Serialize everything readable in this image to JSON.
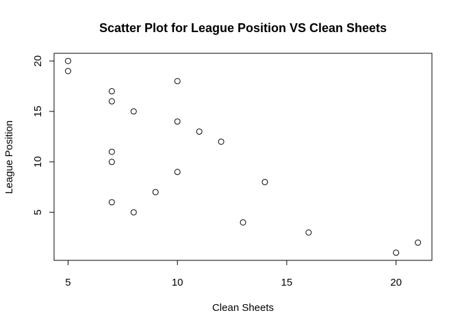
{
  "chart_data": {
    "type": "scatter",
    "title": "Scatter Plot for League Position VS Clean Sheets",
    "xlabel": "Clean Sheets",
    "ylabel": "League Position",
    "xlim": [
      4.36,
      21.64
    ],
    "ylim": [
      0.24,
      20.76
    ],
    "xticks": [
      5,
      10,
      15,
      20
    ],
    "yticks": [
      5,
      10,
      15,
      20
    ],
    "grid": false,
    "points": [
      {
        "x": 20,
        "y": 1
      },
      {
        "x": 21,
        "y": 2
      },
      {
        "x": 16,
        "y": 3
      },
      {
        "x": 13,
        "y": 4
      },
      {
        "x": 8,
        "y": 5
      },
      {
        "x": 7,
        "y": 6
      },
      {
        "x": 9,
        "y": 7
      },
      {
        "x": 14,
        "y": 8
      },
      {
        "x": 10,
        "y": 9
      },
      {
        "x": 7,
        "y": 10
      },
      {
        "x": 7,
        "y": 11
      },
      {
        "x": 12,
        "y": 12
      },
      {
        "x": 11,
        "y": 13
      },
      {
        "x": 10,
        "y": 14
      },
      {
        "x": 8,
        "y": 15
      },
      {
        "x": 7,
        "y": 16
      },
      {
        "x": 7,
        "y": 17
      },
      {
        "x": 10,
        "y": 18
      },
      {
        "x": 5,
        "y": 19
      },
      {
        "x": 5,
        "y": 20
      }
    ]
  }
}
